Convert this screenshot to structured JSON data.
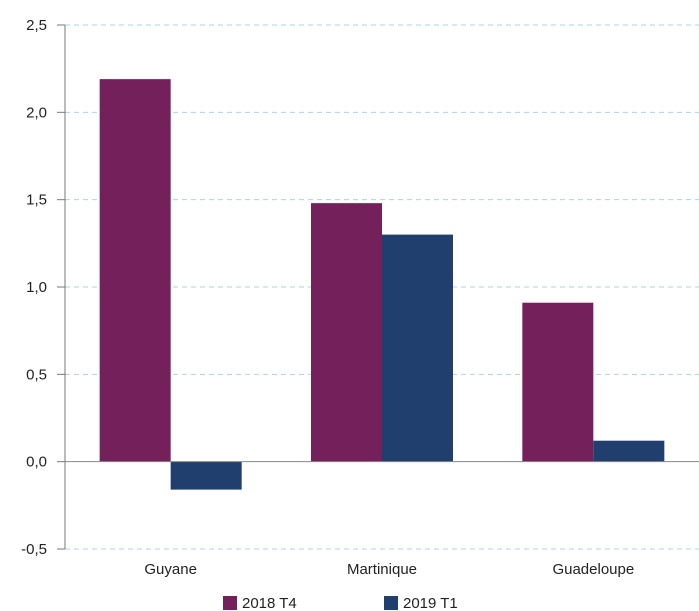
{
  "chart_data": {
    "type": "bar",
    "categories": [
      "Guyane",
      "Martinique",
      "Guadeloupe"
    ],
    "series": [
      {
        "name": "2018 T4",
        "values": [
          2.19,
          1.48,
          0.91
        ],
        "color": "#74205a"
      },
      {
        "name": "2019 T1",
        "values": [
          -0.16,
          1.3,
          0.12
        ],
        "color": "#203f6e"
      }
    ],
    "y_ticks": [
      "-0,5",
      "0,0",
      "0,5",
      "1,0",
      "1,5",
      "2,0",
      "2,5"
    ],
    "y_tick_values": [
      -0.5,
      0,
      0.5,
      1.0,
      1.5,
      2.0,
      2.5
    ],
    "ylim": [
      -0.5,
      2.5
    ],
    "grid": true,
    "legend_position": "bottom-center",
    "title": "",
    "xlabel": "",
    "ylabel": ""
  }
}
